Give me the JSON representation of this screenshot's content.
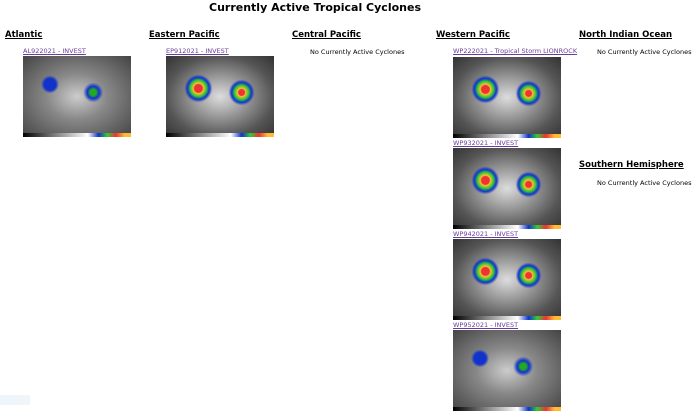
{
  "title": "Currently Active Tropical Cyclones",
  "no_active": "No Currently Active Cyclones",
  "basins": {
    "atlantic": {
      "heading": "Atlantic",
      "storms": [
        {
          "label": "AL922021 - INVEST"
        }
      ]
    },
    "eastern_pacific": {
      "heading": "Eastern Pacific",
      "storms": [
        {
          "label": "EP912021 - INVEST"
        }
      ]
    },
    "central_pacific": {
      "heading": "Central Pacific"
    },
    "western_pacific": {
      "heading": "Western Pacific",
      "storms": [
        {
          "label": "WP222021 - Tropical Storm LIONROCK"
        },
        {
          "label": "WP932021 - INVEST"
        },
        {
          "label": "WP942021 - INVEST"
        },
        {
          "label": "WP952021 - INVEST"
        }
      ]
    },
    "north_indian": {
      "heading": "North Indian Ocean"
    },
    "southern_hemisphere": {
      "heading": "Southern Hemisphere"
    }
  },
  "colors": {
    "link": "#6a3d9a"
  }
}
